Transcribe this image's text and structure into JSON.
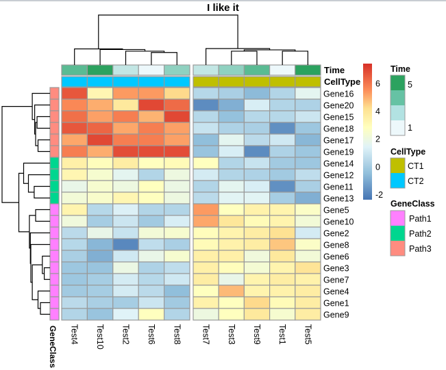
{
  "chart_data": {
    "type": "heatmap",
    "title": "I like it",
    "columns": [
      "Test4",
      "Test10",
      "Test2",
      "Test6",
      "Test8",
      "Test7",
      "Test3",
      "Test9",
      "Test1",
      "Test5"
    ],
    "column_split": [
      5,
      5
    ],
    "rows": [
      "Gene16",
      "Gene20",
      "Gene15",
      "Gene18",
      "Gene17",
      "Gene19",
      "Gene14",
      "Gene12",
      "Gene11",
      "Gene13",
      "Gene5",
      "Gene10",
      "Gene2",
      "Gene8",
      "Gene6",
      "Gene3",
      "Gene7",
      "Gene4",
      "Gene1",
      "Gene9"
    ],
    "values": [
      [
        6.6,
        3.2,
        5.3,
        5.3,
        4.3,
        0.4,
        0.1,
        -0.6,
        0.3,
        1.6
      ],
      [
        5.6,
        5.0,
        3.8,
        6.9,
        6.2,
        -1.8,
        -0.9,
        1.2,
        0.3,
        0.2
      ],
      [
        6.1,
        5.2,
        5.8,
        4.9,
        6.9,
        0.4,
        -0.4,
        0.4,
        0.4,
        0.9
      ],
      [
        6.6,
        6.3,
        5.1,
        5.8,
        5.2,
        0.8,
        0.2,
        0.1,
        -1.7,
        -0.2
      ],
      [
        5.1,
        6.9,
        5.8,
        5.8,
        5.2,
        -0.5,
        1.6,
        0.5,
        1.0,
        -0.7
      ],
      [
        5.8,
        5.0,
        6.8,
        6.8,
        6.8,
        -0.3,
        1.2,
        -1.8,
        0.2,
        -0.2
      ],
      [
        3.5,
        2.9,
        3.6,
        2.8,
        3.0,
        2.8,
        0.3,
        0.8,
        -0.1,
        -0.2
      ],
      [
        3.2,
        2.4,
        1.6,
        0.3,
        2.0,
        1.1,
        0.3,
        0.2,
        -0.1,
        0.6
      ],
      [
        1.8,
        2.4,
        2.0,
        2.8,
        1.9,
        0.3,
        1.6,
        1.2,
        -1.7,
        0.1
      ],
      [
        2.2,
        2.5,
        3.2,
        2.8,
        2.0,
        0.5,
        1.5,
        1.5,
        0.0,
        -0.9
      ],
      [
        3.3,
        0.4,
        1.3,
        0.3,
        0.3,
        5.3,
        2.8,
        3.4,
        3.3,
        2.6
      ],
      [
        2.1,
        0.0,
        0.9,
        -0.1,
        1.2,
        5.1,
        3.9,
        3.0,
        3.3,
        2.2
      ],
      [
        0.5,
        1.8,
        0.8,
        2.2,
        2.4,
        2.9,
        3.3,
        3.6,
        4.1,
        1.1
      ],
      [
        0.4,
        -0.7,
        -1.9,
        0.6,
        0.1,
        3.0,
        3.4,
        3.6,
        4.6,
        2.6
      ],
      [
        0.1,
        -0.9,
        1.0,
        1.8,
        2.4,
        3.5,
        3.5,
        2.1,
        3.8,
        2.2
      ],
      [
        -0.2,
        -0.3,
        1.9,
        0.2,
        0.6,
        3.5,
        2.9,
        2.3,
        3.3,
        4.0
      ],
      [
        -0.2,
        0.0,
        1.1,
        0.4,
        1.0,
        3.6,
        1.8,
        3.3,
        3.6,
        3.4
      ],
      [
        -0.1,
        0.0,
        1.1,
        0.5,
        -0.5,
        2.8,
        4.8,
        3.3,
        3.4,
        3.6
      ],
      [
        0.5,
        0.1,
        0.0,
        0.9,
        -0.1,
        3.4,
        2.8,
        4.3,
        3.0,
        3.6
      ],
      [
        0.3,
        -0.3,
        1.4,
        2.8,
        0.3,
        2.0,
        2.8,
        3.8,
        2.4,
        3.6
      ]
    ],
    "color_scale": {
      "name": "RdYlBu (reversed)",
      "stops": [
        {
          "value": -2.4,
          "color": "#4575b4"
        },
        {
          "value": -0.5,
          "color": "#91bfdb"
        },
        {
          "value": 1.4,
          "color": "#e0f3f8"
        },
        {
          "value": 2.8,
          "color": "#ffffbf"
        },
        {
          "value": 4.2,
          "color": "#fee090"
        },
        {
          "value": 5.5,
          "color": "#fc8d59"
        },
        {
          "value": 7.4,
          "color": "#d73027"
        }
      ],
      "ticks": [
        6,
        4,
        2,
        0,
        -2
      ],
      "range": [
        -2.4,
        7.4
      ]
    },
    "column_annotations": [
      {
        "name": "Time",
        "values": [
          4,
          5,
          2,
          1,
          3,
          2,
          3,
          4,
          1,
          5
        ],
        "colors": {
          "1": "#edf8fb",
          "2": "#c2e6e4",
          "3": "#8fd1c0",
          "4": "#5abb93",
          "5": "#2ca25f"
        }
      },
      {
        "name": "CellType",
        "values": [
          "CT2",
          "CT2",
          "CT2",
          "CT2",
          "CT2",
          "CT1",
          "CT1",
          "CT1",
          "CT1",
          "CT1"
        ],
        "colors": {
          "CT1": "#bfbf00",
          "CT2": "#00c8ff"
        }
      }
    ],
    "row_annotation": {
      "name": "GeneClass",
      "values": [
        "Path3",
        "Path3",
        "Path3",
        "Path3",
        "Path3",
        "Path3",
        "Path2",
        "Path2",
        "Path2",
        "Path2",
        "Path1",
        "Path1",
        "Path1",
        "Path1",
        "Path1",
        "Path1",
        "Path1",
        "Path1",
        "Path1",
        "Path1"
      ],
      "colors": {
        "Path1": "#ff80ff",
        "Path2": "#00d68f",
        "Path3": "#ff8c80"
      }
    },
    "column_dendrogram": {
      "merges": [
        {
          "a": [
            3
          ],
          "b": [
            4
          ],
          "height": 0.34
        },
        {
          "a": [
            2
          ],
          "b": [
            3,
            4
          ],
          "height": 0.38
        },
        {
          "a": [
            1
          ],
          "b": [
            2,
            3,
            4
          ],
          "height": 0.43
        },
        {
          "a": [
            0
          ],
          "b": [
            1,
            2,
            3,
            4
          ],
          "height": 0.45
        },
        {
          "a": [
            6
          ],
          "b": [
            7
          ],
          "height": 0.38
        },
        {
          "a": [
            8
          ],
          "b": [
            9
          ],
          "height": 0.38
        },
        {
          "a": [
            6,
            7
          ],
          "b": [
            8,
            9
          ],
          "height": 0.42
        },
        {
          "a": [
            5
          ],
          "b": [
            6,
            7,
            8,
            9
          ],
          "height": 0.46
        },
        {
          "a": [
            0,
            1,
            2,
            3,
            4
          ],
          "b": [
            5,
            6,
            7,
            8,
            9
          ],
          "height": 1.0
        }
      ]
    },
    "row_dendrogram": {
      "merges": [
        {
          "a": [
            4
          ],
          "b": [
            5
          ],
          "height": 0.25
        },
        {
          "a": [
            2
          ],
          "b": [
            3
          ],
          "height": 0.27
        },
        {
          "a": [
            2,
            3
          ],
          "b": [
            4,
            5
          ],
          "height": 0.3
        },
        {
          "a": [
            1
          ],
          "b": [
            2,
            3,
            4,
            5
          ],
          "height": 0.32
        },
        {
          "a": [
            0
          ],
          "b": [
            1,
            2,
            3,
            4,
            5
          ],
          "height": 0.37
        },
        {
          "a": [
            8
          ],
          "b": [
            9
          ],
          "height": 0.33
        },
        {
          "a": [
            7
          ],
          "b": [
            8,
            9
          ],
          "height": 0.45
        },
        {
          "a": [
            6
          ],
          "b": [
            7,
            8,
            9
          ],
          "height": 0.55
        },
        {
          "a": [
            10
          ],
          "b": [
            11
          ],
          "height": 0.3
        },
        {
          "a": [
            18
          ],
          "b": [
            19
          ],
          "height": 0.2
        },
        {
          "a": [
            17
          ],
          "b": [
            18,
            19
          ],
          "height": 0.25
        },
        {
          "a": [
            15
          ],
          "b": [
            16
          ],
          "height": 0.12
        },
        {
          "a": [
            14
          ],
          "b": [
            15,
            16
          ],
          "height": 0.16
        },
        {
          "a": [
            14,
            15,
            16
          ],
          "b": [
            17,
            18,
            19
          ],
          "height": 0.37
        },
        {
          "a": [
            13
          ],
          "b": [
            14,
            15,
            16,
            17,
            18,
            19
          ],
          "height": 0.4
        },
        {
          "a": [
            12
          ],
          "b": [
            13,
            14,
            15,
            16,
            17,
            18,
            19
          ],
          "height": 0.41
        },
        {
          "a": [
            10,
            11
          ],
          "b": [
            12,
            13,
            14,
            15,
            16,
            17,
            18,
            19
          ],
          "height": 0.43
        },
        {
          "a": [
            6,
            7,
            8,
            9
          ],
          "b": [
            10,
            11,
            12,
            13,
            14,
            15,
            16,
            17,
            18,
            19
          ],
          "height": 0.65
        },
        {
          "a": [
            0,
            1,
            2,
            3,
            4,
            5
          ],
          "b": [
            6,
            7,
            8,
            9,
            10,
            11,
            12,
            13,
            14,
            15,
            16,
            17,
            18,
            19
          ],
          "height": 1.0
        }
      ]
    },
    "legends": {
      "colorbar_ticks": [
        "6",
        "4",
        "2",
        "0",
        "-2"
      ],
      "time": {
        "title": "Time",
        "labels": [
          "5",
          "1"
        ],
        "colors": [
          "#2ca25f",
          "#66c2a4",
          "#b2e2e2",
          "#edf8fb"
        ]
      },
      "celltype": {
        "title": "CellType",
        "labels": [
          "CT1",
          "CT2"
        ],
        "colors": [
          "#bfbf00",
          "#00c8ff"
        ]
      },
      "geneclass": {
        "title": "GeneClass",
        "labels": [
          "Path1",
          "Path2",
          "Path3"
        ],
        "colors": [
          "#ff80ff",
          "#00d68f",
          "#ff8c80"
        ]
      }
    }
  }
}
